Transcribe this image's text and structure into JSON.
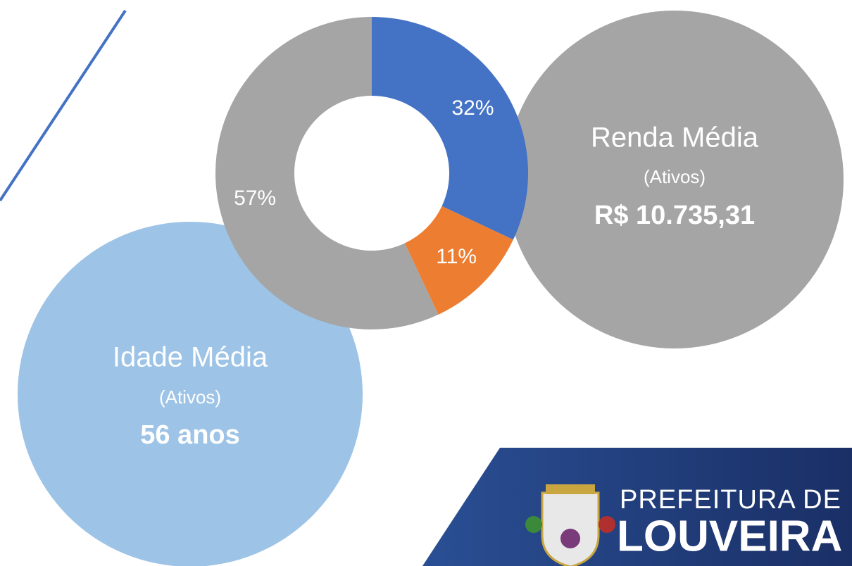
{
  "chart_data": {
    "type": "donut",
    "values": [
      32,
      11,
      57
    ],
    "value_labels": [
      "32%",
      "11%",
      "57%"
    ],
    "colors": [
      "#4472c4",
      "#ed7d31",
      "#a5a5a5"
    ]
  },
  "cards": [
    {
      "title": "Renda Média",
      "subtitle": "(Ativos)",
      "value": "R$ 10.735,31"
    },
    {
      "title": "Idade Média",
      "subtitle": "(Ativos)",
      "value": "56 anos"
    }
  ],
  "logo": {
    "line1": "PREFEITURA DE",
    "line2": "LOUVEIRA"
  }
}
